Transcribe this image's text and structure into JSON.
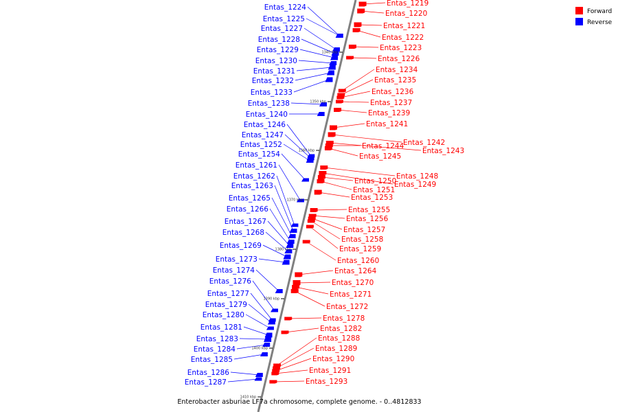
{
  "caption": "Enterobacter asburiae LF7a chromosome, complete genome. - 0..4812833",
  "colors": {
    "forward": "#ff0000",
    "reverse": "#0000ff",
    "axis": "#808080",
    "tick": "#000000",
    "background": "#ffffff"
  },
  "legend": [
    {
      "label": "Forward",
      "strand": "forward"
    },
    {
      "label": "Reverse",
      "strand": "reverse"
    }
  ],
  "ticks": [
    "1340 kbp",
    "1350 kbp",
    "1360 kbp",
    "1370 kbp",
    "1380 kbp",
    "1390 kbp",
    "1400 kbp",
    "1410 kbp"
  ],
  "genes_reverse": [
    "Entas_1224",
    "Entas_1225",
    "Entas_1227",
    "Entas_1228",
    "Entas_1229",
    "Entas_1230",
    "Entas_1231",
    "Entas_1232",
    "Entas_1233",
    "Entas_1238",
    "Entas_1240",
    "Entas_1246",
    "Entas_1247",
    "Entas_1252",
    "Entas_1254",
    "Entas_1261",
    "Entas_1262",
    "Entas_1263",
    "Entas_1265",
    "Entas_1266",
    "Entas_1267",
    "Entas_1268",
    "Entas_1269",
    "Entas_1273",
    "Entas_1274",
    "Entas_1276",
    "Entas_1277",
    "Entas_1279",
    "Entas_1280",
    "Entas_1281",
    "Entas_1283",
    "Entas_1284",
    "Entas_1285",
    "Entas_1286",
    "Entas_1287"
  ],
  "genes_forward": [
    "Entas_1219",
    "Entas_1220",
    "Entas_1221",
    "Entas_1222",
    "Entas_1223",
    "Entas_1226",
    "Entas_1234",
    "Entas_1235",
    "Entas_1236",
    "Entas_1237",
    "Entas_1239",
    "Entas_1241",
    "Entas_1242",
    "Entas_1243",
    "Entas_1244",
    "Entas_1245",
    "Entas_1248",
    "Entas_1249",
    "Entas_1250",
    "Entas_1251",
    "Entas_1253",
    "Entas_1255",
    "Entas_1256",
    "Entas_1257",
    "Entas_1258",
    "Entas_1259",
    "Entas_1260",
    "Entas_1264",
    "Entas_1270",
    "Entas_1271",
    "Entas_1272",
    "Entas_1278",
    "Entas_1282",
    "Entas_1288",
    "Entas_1289",
    "Entas_1290",
    "Entas_1291",
    "Entas_1293"
  ]
}
